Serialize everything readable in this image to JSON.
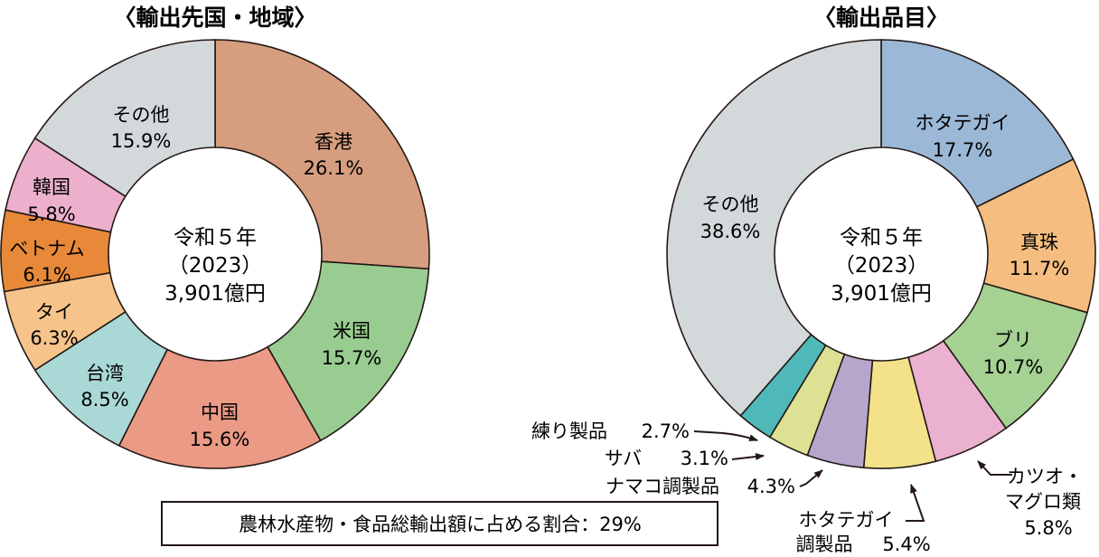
{
  "chart_data": [
    {
      "type": "donut",
      "title": "〈輸出先国・地域〉",
      "center": {
        "line1": "令和５年",
        "line2": "（2023）",
        "line3": "3,901億円"
      },
      "slices": [
        {
          "name": "香港",
          "value": 26.1,
          "label": "26.1%",
          "color": "#d69e7e"
        },
        {
          "name": "米国",
          "value": 15.7,
          "label": "15.7%",
          "color": "#99cc91"
        },
        {
          "name": "中国",
          "value": 15.6,
          "label": "15.6%",
          "color": "#eb9a86"
        },
        {
          "name": "台湾",
          "value": 8.5,
          "label": "8.5%",
          "color": "#a9d8d6"
        },
        {
          "name": "タイ",
          "value": 6.3,
          "label": "6.3%",
          "color": "#f6c38b"
        },
        {
          "name": "ベトナム",
          "value": 6.1,
          "label": "6.1%",
          "color": "#e8893a"
        },
        {
          "name": "韓国",
          "value": 5.8,
          "label": "5.8%",
          "color": "#ecb0cd"
        },
        {
          "name": "その他",
          "value": 15.9,
          "label": "15.9%",
          "color": "#d3d8da"
        }
      ]
    },
    {
      "type": "donut",
      "title": "〈輸出品目〉",
      "center": {
        "line1": "令和５年",
        "line2": "（2023）",
        "line3": "3,901億円"
      },
      "slices": [
        {
          "name": "ホタテガイ",
          "value": 17.7,
          "label": "17.7%",
          "color": "#9bb9d6"
        },
        {
          "name": "真珠",
          "value": 11.7,
          "label": "11.7%",
          "color": "#f5be80"
        },
        {
          "name": "ブリ",
          "value": 10.7,
          "label": "10.7%",
          "color": "#a5d293"
        },
        {
          "name": "カツオ・マグロ類",
          "label_lines": [
            "カツオ・",
            "マグロ類"
          ],
          "value": 5.8,
          "label": "5.8%",
          "color": "#ebb1d1"
        },
        {
          "name": "ホタテガイ調製品",
          "label_lines": [
            "ホタテガイ",
            "調製品"
          ],
          "value": 5.4,
          "label": "5.4%",
          "color": "#f4e28a"
        },
        {
          "name": "ナマコ調製品",
          "value": 4.3,
          "label": "4.3%",
          "color": "#b7a6cc"
        },
        {
          "name": "サバ",
          "value": 3.1,
          "label": "3.1%",
          "color": "#dde194"
        },
        {
          "name": "練り製品",
          "value": 2.7,
          "label": "2.7%",
          "color": "#4fb8b8"
        },
        {
          "name": "その他",
          "value": 38.6,
          "label": "38.6%",
          "color": "#d3d8da"
        }
      ]
    }
  ],
  "note": "農林水産物・食品総輸出額に占める割合：29%"
}
